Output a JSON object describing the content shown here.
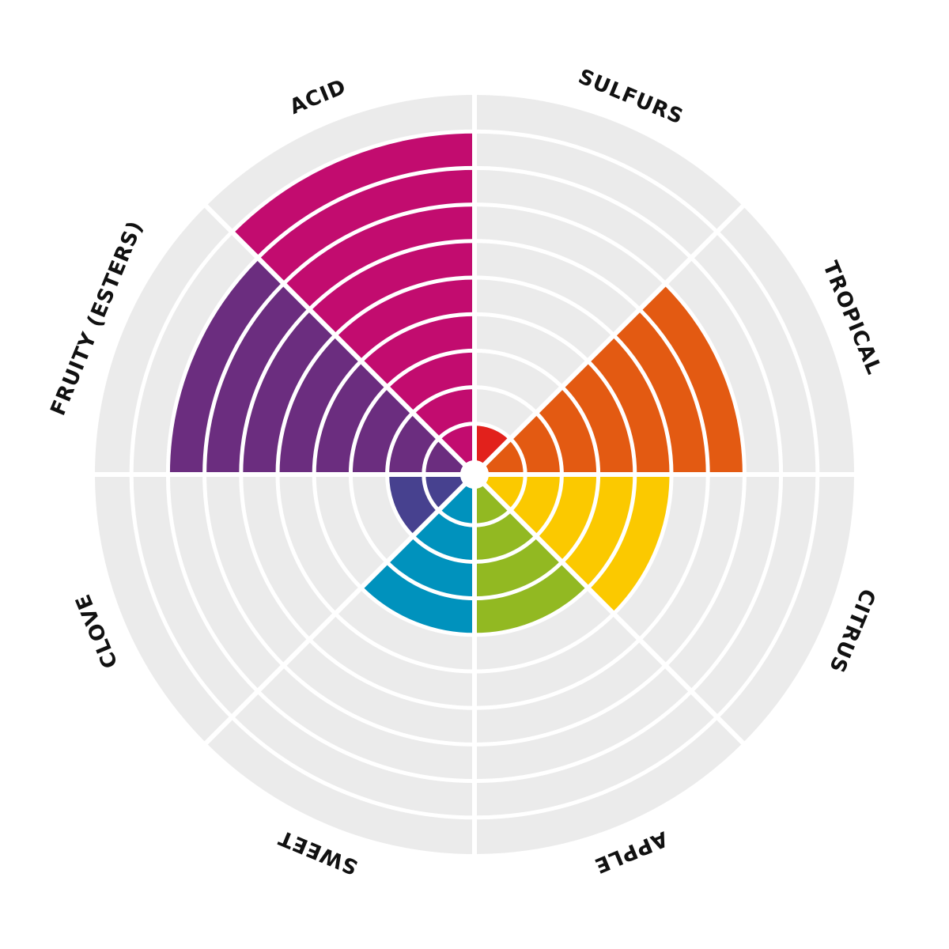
{
  "chart_data": {
    "type": "radial-bar",
    "rings": 10,
    "max": 10,
    "background_color": "#ebebeb",
    "separator_color": "#ffffff",
    "categories": [
      {
        "label": "SULFURS",
        "value": 1,
        "color": "#e2211c"
      },
      {
        "label": "TROPICAL",
        "value": 7,
        "color": "#e35a12"
      },
      {
        "label": "CITRUS",
        "value": 5,
        "color": "#fbc900"
      },
      {
        "label": "APPLE",
        "value": 4,
        "color": "#92b922"
      },
      {
        "label": "SWEET",
        "value": 4,
        "color": "#0092bd"
      },
      {
        "label": "CLOVE",
        "value": 2,
        "color": "#47418f"
      },
      {
        "label": "FRUITY (ESTERS)",
        "value": 8,
        "color": "#6b2d7f"
      },
      {
        "label": "ACID",
        "value": 9,
        "color": "#c20c6f"
      }
    ]
  }
}
